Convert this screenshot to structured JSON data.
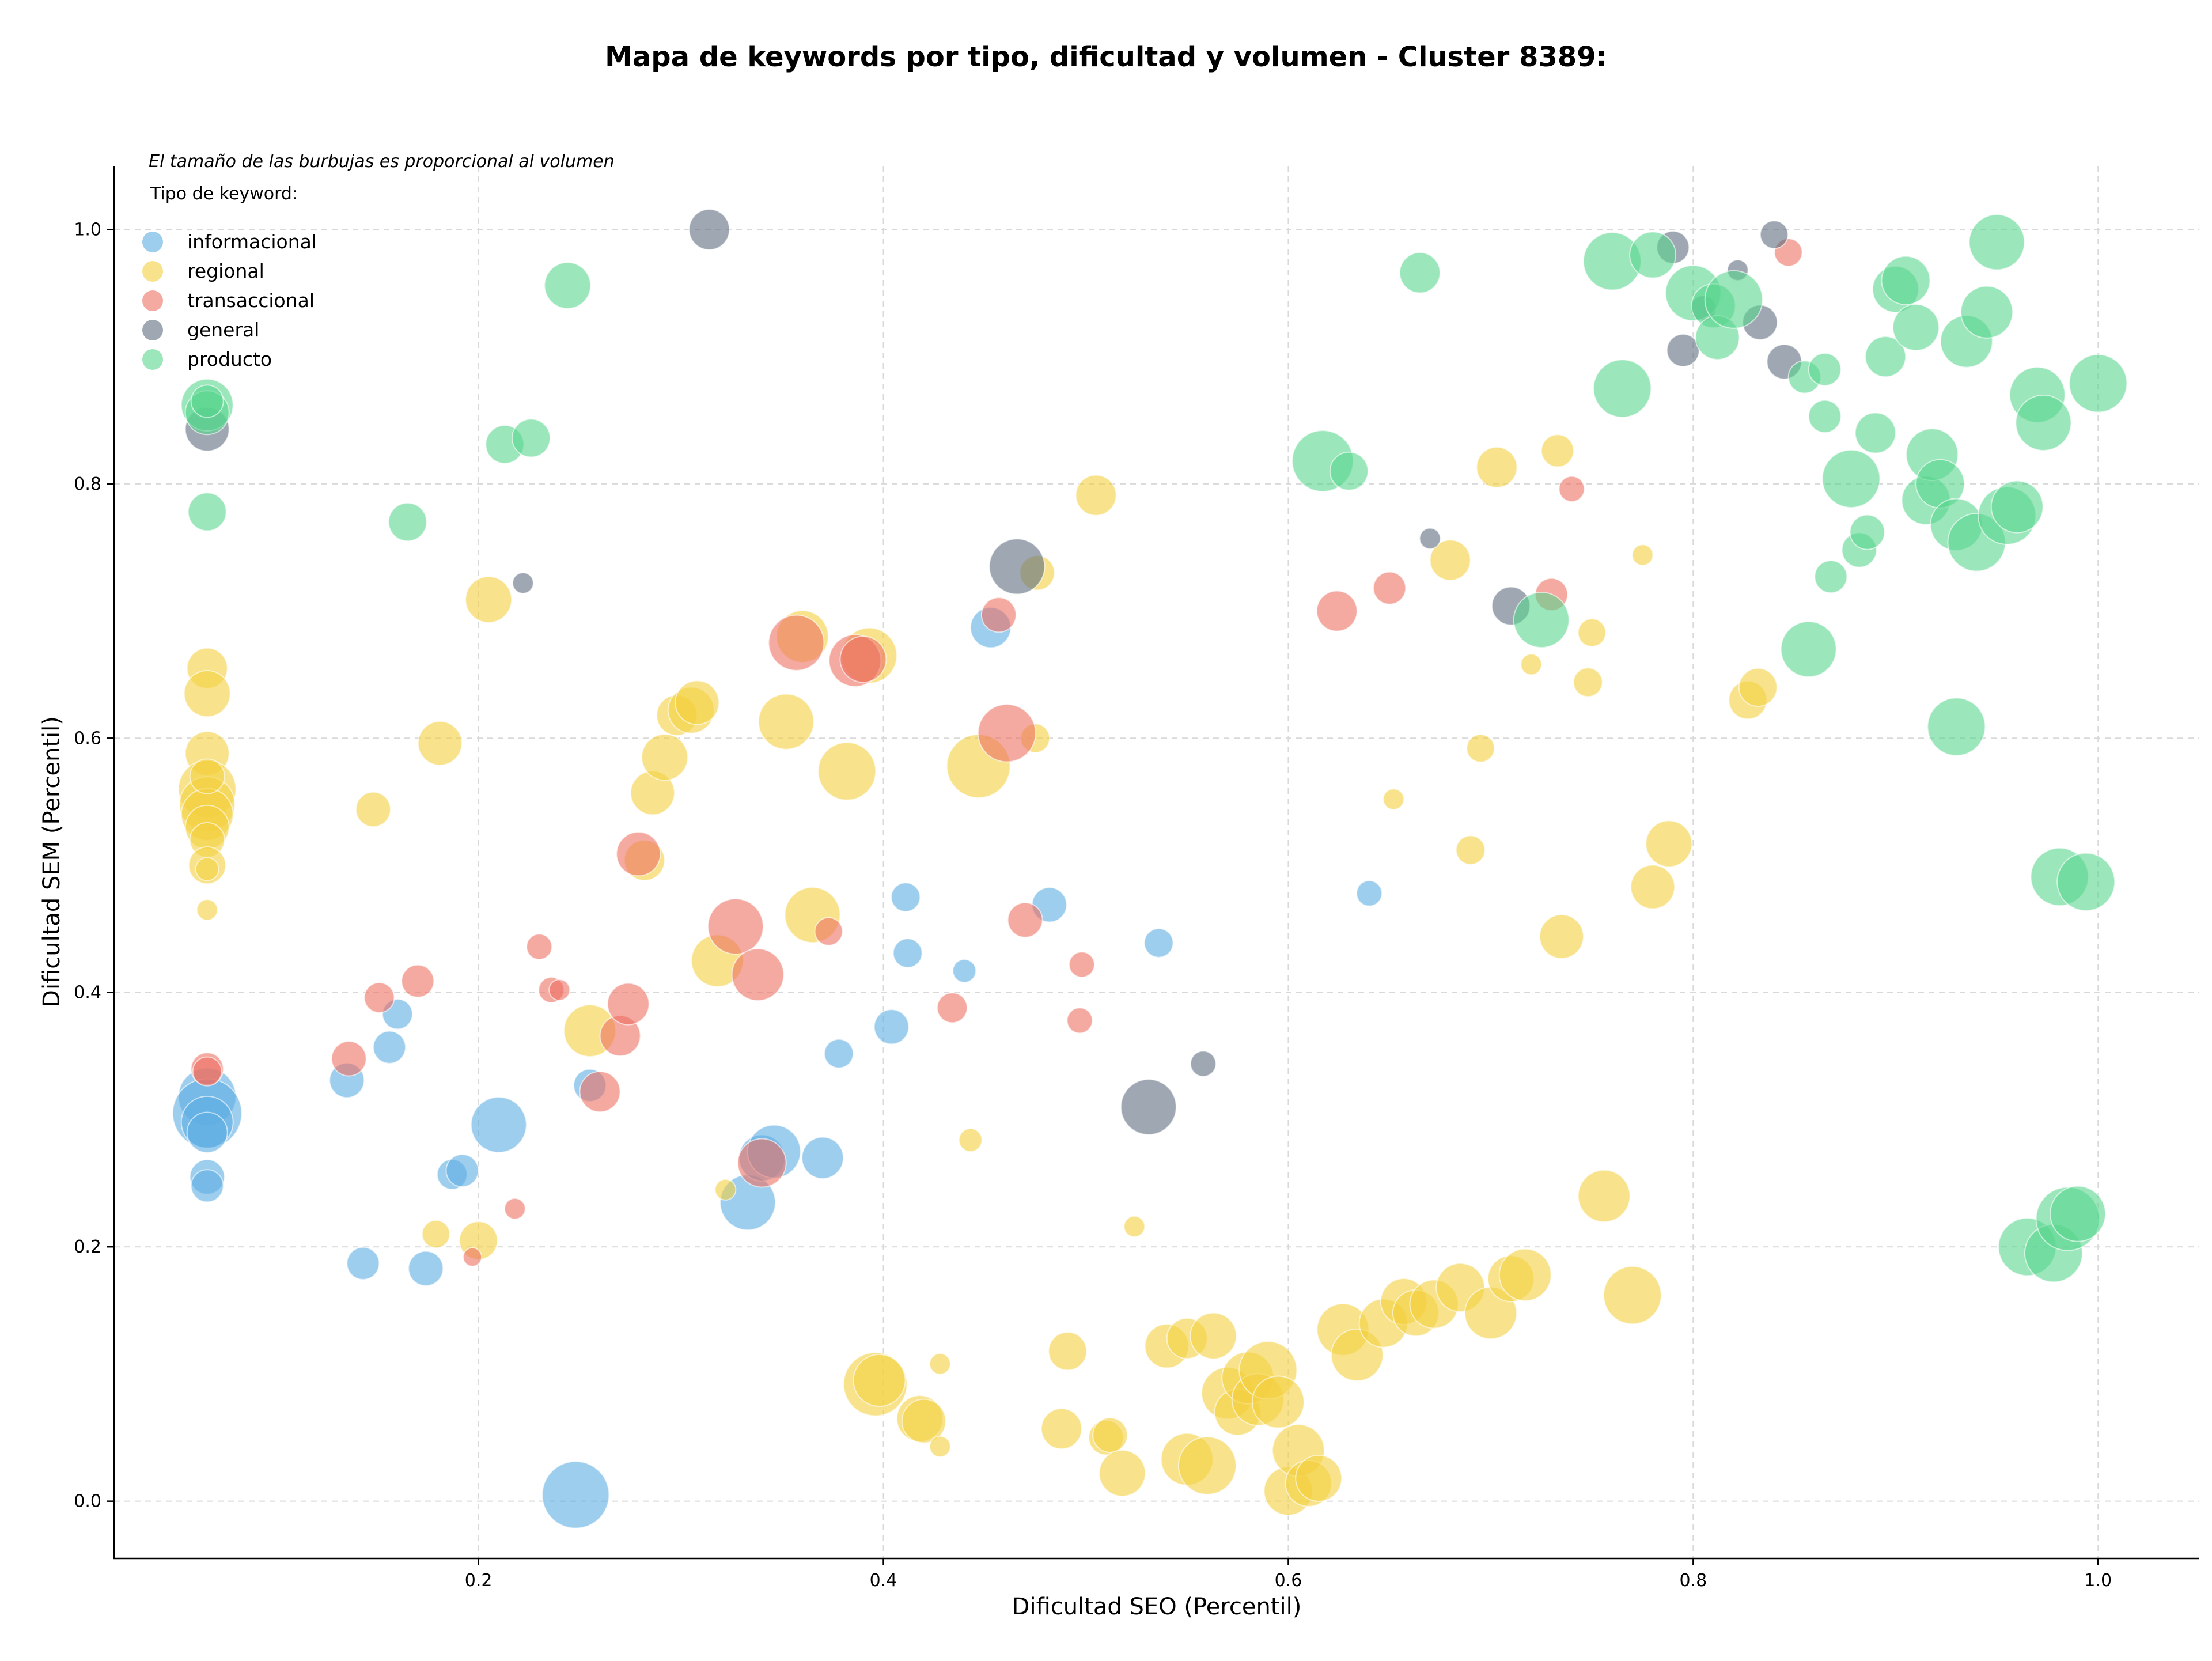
{
  "chart_data": {
    "type": "scatter",
    "title": "Mapa de keywords por tipo, dificultad y volumen - Cluster 8389:",
    "xlabel": "Dificultad SEO (Percentil)",
    "ylabel": "Dificultad SEM (Percentil)",
    "note": "El tamaño de las burbujas es proporcional al volumen",
    "legend_title": "Tipo de keyword:",
    "legend_position": "top-left",
    "grid": true,
    "xlim": [
      0.02,
      1.05
    ],
    "ylim": [
      -0.045,
      1.05
    ],
    "xticks": [
      "0.2",
      "0.4",
      "0.6",
      "0.8",
      "1.0"
    ],
    "yticks": [
      "0.0",
      "0.2",
      "0.4",
      "0.6",
      "0.8",
      "1.0"
    ],
    "xtick_values": [
      0.2,
      0.4,
      0.6,
      0.8,
      1.0
    ],
    "ytick_values": [
      0.0,
      0.2,
      0.4,
      0.6,
      0.8,
      1.0
    ],
    "series": [
      {
        "name": "informacional",
        "color": "#5dade2",
        "points": [
          [
            0.066,
            0.318,
            50
          ],
          [
            0.066,
            0.305,
            60
          ],
          [
            0.066,
            0.298,
            45
          ],
          [
            0.066,
            0.29,
            35
          ],
          [
            0.066,
            0.255,
            30
          ],
          [
            0.066,
            0.248,
            28
          ],
          [
            0.135,
            0.331,
            30
          ],
          [
            0.143,
            0.187,
            28
          ],
          [
            0.156,
            0.357,
            28
          ],
          [
            0.16,
            0.383,
            26
          ],
          [
            0.174,
            0.183,
            30
          ],
          [
            0.187,
            0.257,
            26
          ],
          [
            0.192,
            0.26,
            28
          ],
          [
            0.21,
            0.296,
            48
          ],
          [
            0.248,
            0.005,
            58
          ],
          [
            0.255,
            0.327,
            28
          ],
          [
            0.333,
            0.235,
            48
          ],
          [
            0.34,
            0.27,
            40
          ],
          [
            0.346,
            0.275,
            46
          ],
          [
            0.37,
            0.27,
            36
          ],
          [
            0.378,
            0.352,
            25
          ],
          [
            0.404,
            0.373,
            30
          ],
          [
            0.411,
            0.475,
            25
          ],
          [
            0.412,
            0.431,
            25
          ],
          [
            0.44,
            0.417,
            20
          ],
          [
            0.453,
            0.687,
            35
          ],
          [
            0.482,
            0.469,
            30
          ],
          [
            0.536,
            0.439,
            25
          ],
          [
            0.64,
            0.478,
            22
          ]
        ]
      },
      {
        "name": "regional",
        "color": "#f4d03f",
        "points": [
          [
            0.066,
            0.655,
            35
          ],
          [
            0.066,
            0.635,
            40
          ],
          [
            0.066,
            0.588,
            38
          ],
          [
            0.066,
            0.56,
            50
          ],
          [
            0.066,
            0.548,
            48
          ],
          [
            0.066,
            0.54,
            45
          ],
          [
            0.066,
            0.53,
            38
          ],
          [
            0.066,
            0.52,
            30
          ],
          [
            0.066,
            0.5,
            32
          ],
          [
            0.066,
            0.465,
            18
          ],
          [
            0.066,
            0.497,
            20
          ],
          [
            0.066,
            0.57,
            30
          ],
          [
            0.148,
            0.544,
            30
          ],
          [
            0.181,
            0.596,
            38
          ],
          [
            0.205,
            0.709,
            40
          ],
          [
            0.179,
            0.21,
            24
          ],
          [
            0.2,
            0.205,
            33
          ],
          [
            0.255,
            0.37,
            45
          ],
          [
            0.282,
            0.504,
            35
          ],
          [
            0.286,
            0.557,
            38
          ],
          [
            0.292,
            0.585,
            40
          ],
          [
            0.298,
            0.618,
            35
          ],
          [
            0.305,
            0.622,
            40
          ],
          [
            0.308,
            0.628,
            38
          ],
          [
            0.318,
            0.425,
            45
          ],
          [
            0.322,
            0.245,
            18
          ],
          [
            0.352,
            0.613,
            48
          ],
          [
            0.36,
            0.68,
            45
          ],
          [
            0.365,
            0.461,
            48
          ],
          [
            0.382,
            0.574,
            50
          ],
          [
            0.393,
            0.665,
            48
          ],
          [
            0.396,
            0.092,
            55
          ],
          [
            0.398,
            0.095,
            45
          ],
          [
            0.418,
            0.065,
            40
          ],
          [
            0.42,
            0.063,
            38
          ],
          [
            0.428,
            0.108,
            18
          ],
          [
            0.428,
            0.043,
            18
          ],
          [
            0.443,
            0.284,
            20
          ],
          [
            0.447,
            0.578,
            55
          ],
          [
            0.475,
            0.6,
            25
          ],
          [
            0.476,
            0.73,
            30
          ],
          [
            0.488,
            0.057,
            35
          ],
          [
            0.491,
            0.118,
            33
          ],
          [
            0.505,
            0.791,
            35
          ],
          [
            0.51,
            0.05,
            30
          ],
          [
            0.512,
            0.052,
            30
          ],
          [
            0.518,
            0.022,
            40
          ],
          [
            0.524,
            0.216,
            18
          ],
          [
            0.54,
            0.122,
            38
          ],
          [
            0.55,
            0.033,
            45
          ],
          [
            0.55,
            0.128,
            35
          ],
          [
            0.56,
            0.028,
            50
          ],
          [
            0.563,
            0.13,
            40
          ],
          [
            0.57,
            0.085,
            45
          ],
          [
            0.575,
            0.07,
            40
          ],
          [
            0.58,
            0.097,
            45
          ],
          [
            0.585,
            0.08,
            45
          ],
          [
            0.59,
            0.103,
            50
          ],
          [
            0.595,
            0.078,
            45
          ],
          [
            0.6,
            0.008,
            42
          ],
          [
            0.605,
            0.04,
            45
          ],
          [
            0.61,
            0.014,
            40
          ],
          [
            0.615,
            0.018,
            40
          ],
          [
            0.627,
            0.135,
            45
          ],
          [
            0.634,
            0.115,
            45
          ],
          [
            0.647,
            0.14,
            42
          ],
          [
            0.652,
            0.552,
            18
          ],
          [
            0.657,
            0.157,
            40
          ],
          [
            0.663,
            0.148,
            40
          ],
          [
            0.672,
            0.155,
            42
          ],
          [
            0.68,
            0.74,
            35
          ],
          [
            0.685,
            0.168,
            42
          ],
          [
            0.69,
            0.512,
            25
          ],
          [
            0.695,
            0.592,
            24
          ],
          [
            0.7,
            0.148,
            45
          ],
          [
            0.703,
            0.813,
            35
          ],
          [
            0.71,
            0.175,
            40
          ],
          [
            0.717,
            0.178,
            45
          ],
          [
            0.72,
            0.658,
            18
          ],
          [
            0.733,
            0.826,
            28
          ],
          [
            0.735,
            0.444,
            38
          ],
          [
            0.748,
            0.644,
            25
          ],
          [
            0.75,
            0.683,
            24
          ],
          [
            0.756,
            0.24,
            45
          ],
          [
            0.77,
            0.162,
            50
          ],
          [
            0.775,
            0.744,
            18
          ],
          [
            0.78,
            0.483,
            38
          ],
          [
            0.788,
            0.517,
            40
          ],
          [
            0.827,
            0.63,
            33
          ],
          [
            0.832,
            0.64,
            33
          ]
        ]
      },
      {
        "name": "transaccional",
        "color": "#ec7063",
        "points": [
          [
            0.066,
            0.34,
            28
          ],
          [
            0.066,
            0.338,
            25
          ],
          [
            0.136,
            0.348,
            30
          ],
          [
            0.151,
            0.396,
            26
          ],
          [
            0.17,
            0.409,
            28
          ],
          [
            0.197,
            0.192,
            16
          ],
          [
            0.218,
            0.23,
            18
          ],
          [
            0.23,
            0.436,
            22
          ],
          [
            0.236,
            0.402,
            22
          ],
          [
            0.24,
            0.402,
            18
          ],
          [
            0.26,
            0.322,
            35
          ],
          [
            0.27,
            0.366,
            35
          ],
          [
            0.274,
            0.391,
            36
          ],
          [
            0.279,
            0.509,
            38
          ],
          [
            0.327,
            0.452,
            48
          ],
          [
            0.338,
            0.414,
            45
          ],
          [
            0.34,
            0.266,
            42
          ],
          [
            0.357,
            0.675,
            48
          ],
          [
            0.373,
            0.448,
            24
          ],
          [
            0.386,
            0.661,
            45
          ],
          [
            0.39,
            0.662,
            40
          ],
          [
            0.434,
            0.388,
            26
          ],
          [
            0.457,
            0.697,
            30
          ],
          [
            0.461,
            0.604,
            50
          ],
          [
            0.47,
            0.457,
            30
          ],
          [
            0.498,
            0.422,
            22
          ],
          [
            0.497,
            0.378,
            22
          ],
          [
            0.624,
            0.7,
            35
          ],
          [
            0.65,
            0.718,
            28
          ],
          [
            0.73,
            0.713,
            28
          ],
          [
            0.74,
            0.796,
            22
          ],
          [
            0.847,
            0.982,
            24
          ]
        ]
      },
      {
        "name": "general",
        "color": "#5d6d7e",
        "points": [
          [
            0.066,
            0.843,
            38
          ],
          [
            0.222,
            0.722,
            18
          ],
          [
            0.314,
            1.0,
            35
          ],
          [
            0.466,
            0.735,
            48
          ],
          [
            0.531,
            0.31,
            48
          ],
          [
            0.558,
            0.344,
            22
          ],
          [
            0.67,
            0.757,
            18
          ],
          [
            0.71,
            0.704,
            33
          ],
          [
            0.79,
            0.986,
            28
          ],
          [
            0.795,
            0.905,
            28
          ],
          [
            0.805,
            0.938,
            22
          ],
          [
            0.822,
            0.968,
            18
          ],
          [
            0.833,
            0.927,
            30
          ],
          [
            0.84,
            0.996,
            24
          ],
          [
            0.845,
            0.896,
            30
          ]
        ]
      },
      {
        "name": "producto",
        "color": "#58d68d",
        "points": [
          [
            0.066,
            0.862,
            45
          ],
          [
            0.066,
            0.856,
            38
          ],
          [
            0.066,
            0.865,
            28
          ],
          [
            0.066,
            0.778,
            33
          ],
          [
            0.165,
            0.77,
            33
          ],
          [
            0.213,
            0.831,
            33
          ],
          [
            0.226,
            0.836,
            33
          ],
          [
            0.244,
            0.956,
            40
          ],
          [
            0.617,
            0.818,
            53
          ],
          [
            0.63,
            0.81,
            33
          ],
          [
            0.665,
            0.966,
            35
          ],
          [
            0.725,
            0.693,
            48
          ],
          [
            0.76,
            0.975,
            50
          ],
          [
            0.765,
            0.875,
            50
          ],
          [
            0.78,
            0.98,
            40
          ],
          [
            0.8,
            0.95,
            48
          ],
          [
            0.81,
            0.94,
            38
          ],
          [
            0.812,
            0.915,
            38
          ],
          [
            0.82,
            0.945,
            50
          ],
          [
            0.855,
            0.884,
            28
          ],
          [
            0.857,
            0.67,
            48
          ],
          [
            0.865,
            0.89,
            28
          ],
          [
            0.865,
            0.853,
            28
          ],
          [
            0.878,
            0.804,
            50
          ],
          [
            0.882,
            0.748,
            30
          ],
          [
            0.886,
            0.762,
            30
          ],
          [
            0.89,
            0.84,
            35
          ],
          [
            0.895,
            0.9,
            35
          ],
          [
            0.9,
            0.953,
            40
          ],
          [
            0.905,
            0.96,
            42
          ],
          [
            0.91,
            0.923,
            40
          ],
          [
            0.915,
            0.787,
            42
          ],
          [
            0.918,
            0.823,
            45
          ],
          [
            0.922,
            0.8,
            42
          ],
          [
            0.93,
            0.609,
            50
          ],
          [
            0.93,
            0.768,
            45
          ],
          [
            0.935,
            0.912,
            45
          ],
          [
            0.94,
            0.754,
            50
          ],
          [
            0.945,
            0.935,
            45
          ],
          [
            0.95,
            0.99,
            48
          ],
          [
            0.955,
            0.775,
            50
          ],
          [
            0.96,
            0.782,
            45
          ],
          [
            0.97,
            0.87,
            48
          ],
          [
            0.973,
            0.848,
            48
          ],
          [
            0.965,
            0.2,
            50
          ],
          [
            0.978,
            0.195,
            50
          ],
          [
            0.985,
            0.222,
            55
          ],
          [
            0.99,
            0.226,
            48
          ],
          [
            0.981,
            0.491,
            50
          ],
          [
            0.994,
            0.487,
            50
          ],
          [
            1.0,
            0.879,
            50
          ],
          [
            0.868,
            0.727,
            28
          ]
        ]
      }
    ]
  }
}
